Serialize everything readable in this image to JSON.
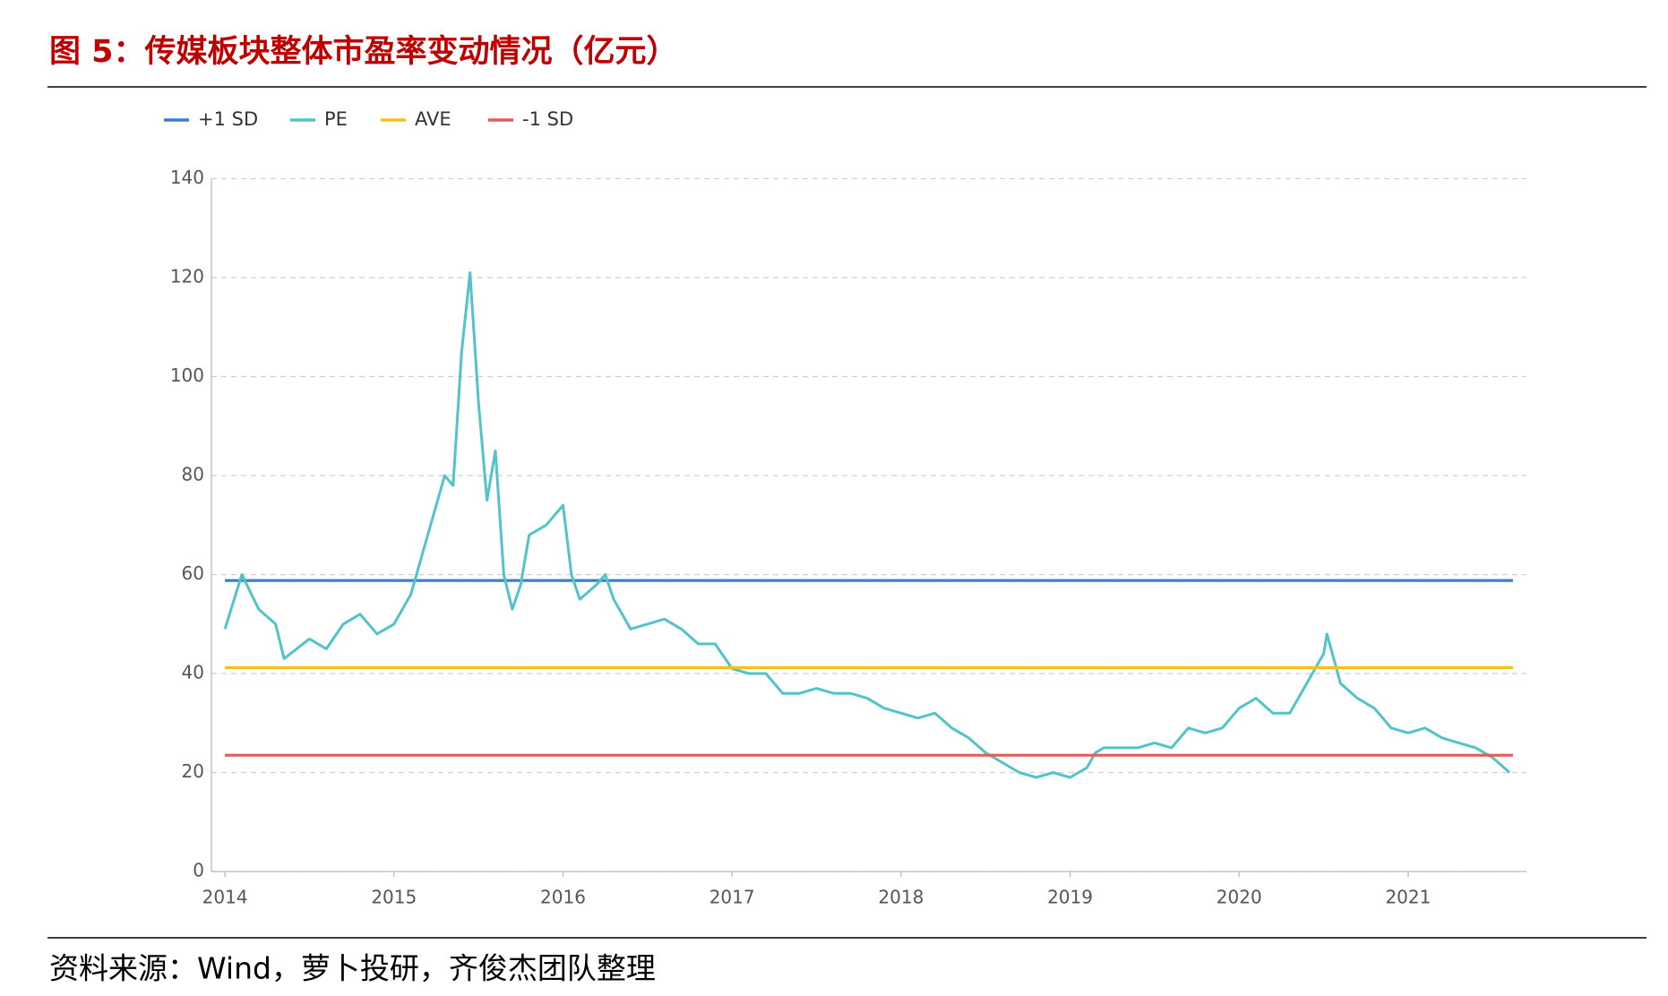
{
  "chart_data": {
    "type": "line",
    "title": "图 5：传媒板块整体市盈率变动情况（亿元）",
    "source": "资料来源：Wind，萝卜投研，齐俊杰团队整理",
    "xlim": [
      2013.92,
      2021.7
    ],
    "xticks": [
      2014,
      2015,
      2016,
      2017,
      2018,
      2019,
      2020,
      2021
    ],
    "ylim": [
      0,
      140
    ],
    "yticks": [
      0,
      20,
      40,
      60,
      80,
      100,
      120,
      140
    ],
    "grid": true,
    "legend": "top-left",
    "series": [
      {
        "name": "+1 SD",
        "color": "#3a7fd0",
        "x": [
          2014,
          2021.62
        ],
        "values": [
          58.8,
          58.8
        ]
      },
      {
        "name": "PE",
        "color": "#52c3c9",
        "x": [
          2014.0,
          2014.1,
          2014.2,
          2014.3,
          2014.35,
          2014.5,
          2014.6,
          2014.7,
          2014.8,
          2014.9,
          2015.0,
          2015.1,
          2015.2,
          2015.3,
          2015.35,
          2015.4,
          2015.45,
          2015.5,
          2015.55,
          2015.6,
          2015.65,
          2015.7,
          2015.75,
          2015.8,
          2015.9,
          2016.0,
          2016.05,
          2016.1,
          2016.2,
          2016.25,
          2016.3,
          2016.4,
          2016.5,
          2016.6,
          2016.7,
          2016.8,
          2016.9,
          2017.0,
          2017.1,
          2017.2,
          2017.3,
          2017.4,
          2017.5,
          2017.6,
          2017.7,
          2017.8,
          2017.9,
          2018.0,
          2018.1,
          2018.2,
          2018.3,
          2018.4,
          2018.5,
          2018.6,
          2018.7,
          2018.8,
          2018.9,
          2019.0,
          2019.1,
          2019.15,
          2019.2,
          2019.3,
          2019.4,
          2019.5,
          2019.6,
          2019.7,
          2019.8,
          2019.9,
          2020.0,
          2020.1,
          2020.2,
          2020.3,
          2020.4,
          2020.5,
          2020.52,
          2020.6,
          2020.7,
          2020.8,
          2020.9,
          2021.0,
          2021.1,
          2021.2,
          2021.3,
          2021.4,
          2021.5,
          2021.6
        ],
        "values": [
          49,
          60,
          53,
          50,
          43,
          47,
          45,
          50,
          52,
          48,
          50,
          56,
          68,
          80,
          78,
          105,
          121,
          95,
          75,
          85,
          60,
          53,
          58,
          68,
          70,
          74,
          60,
          55,
          58,
          60,
          55,
          49,
          50,
          51,
          49,
          46,
          46,
          41,
          40,
          40,
          36,
          36,
          37,
          36,
          36,
          35,
          33,
          32,
          31,
          32,
          29,
          27,
          24,
          22,
          20,
          19,
          20,
          19,
          21,
          24,
          25,
          25,
          25,
          26,
          25,
          29,
          28,
          29,
          33,
          35,
          32,
          32,
          38,
          44,
          48,
          38,
          35,
          33,
          29,
          28,
          29,
          27,
          26,
          25,
          23,
          20
        ]
      },
      {
        "name": "AVE",
        "color": "#f5c01a",
        "x": [
          2014,
          2021.62
        ],
        "values": [
          41.2,
          41.2
        ]
      },
      {
        "name": "-1 SD",
        "color": "#e55a5a",
        "x": [
          2014,
          2021.62
        ],
        "values": [
          23.5,
          23.5
        ]
      }
    ]
  }
}
